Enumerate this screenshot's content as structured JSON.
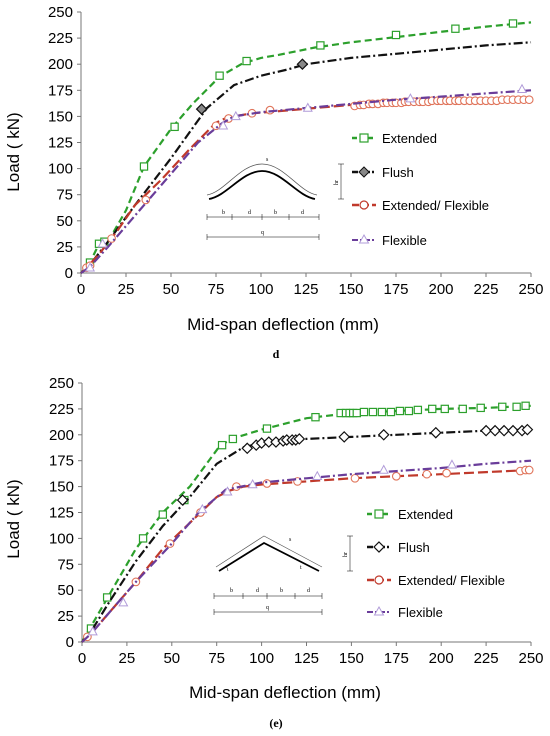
{
  "colors": {
    "extended": "#2ca02c",
    "flush": "#111111",
    "extended_flexible": "#c0392b",
    "flexible": "#6a3d9a",
    "extended_flexible_marker": "#e0745a",
    "flexible_marker": "#b19cd9"
  },
  "chart_data": [
    {
      "type": "line",
      "panel": "(d)",
      "panel_tag": "d",
      "xlabel": "Mid-span deflection (mm)",
      "ylabel": "Load ( kN)",
      "xlim": [
        0,
        250
      ],
      "ylim": [
        0,
        250
      ],
      "xticks": [
        "0",
        "25",
        "50",
        "75",
        "100",
        "125",
        "150",
        "175",
        "200",
        "225",
        "250"
      ],
      "yticks": [
        "0",
        "25",
        "50",
        "75",
        "100",
        "125",
        "150",
        "175",
        "200",
        "225",
        "250"
      ],
      "grid": false,
      "legend_position": "right",
      "inset_labels": {
        "s": "s",
        "hr": "hr",
        "b1": "b",
        "d1": "d",
        "b2": "b",
        "d2": "d",
        "q": "q"
      },
      "series": [
        {
          "name": "Extended",
          "key": "extended",
          "marker": "square",
          "dash": "7,4",
          "x": [
            0,
            2,
            5,
            10,
            15,
            25,
            35,
            50,
            62,
            77,
            90,
            100,
            110,
            130,
            150,
            175,
            200,
            225,
            250
          ],
          "y": [
            0,
            4,
            10,
            28,
            30,
            60,
            102,
            138,
            162,
            188,
            201,
            206,
            209,
            216,
            221,
            226,
            231,
            236,
            240
          ],
          "markers": [
            [
              5,
              10
            ],
            [
              10,
              28
            ],
            [
              13,
              30
            ],
            [
              35,
              102
            ],
            [
              52,
              140
            ],
            [
              77,
              189
            ],
            [
              92,
              203
            ],
            [
              133,
              218
            ],
            [
              175,
              228
            ],
            [
              208,
              234
            ],
            [
              240,
              239
            ]
          ]
        },
        {
          "name": "Flush",
          "key": "flush",
          "marker": "diamond",
          "dash": "9,3,2,3",
          "x": [
            0,
            5,
            15,
            30,
            50,
            70,
            85,
            100,
            115,
            125,
            150,
            175,
            200,
            225,
            250
          ],
          "y": [
            0,
            8,
            30,
            65,
            110,
            158,
            180,
            189,
            195,
            200,
            206,
            210,
            214,
            218,
            221
          ],
          "markers": [
            [
              67,
              157
            ],
            [
              123,
              200
            ]
          ]
        },
        {
          "name": "Extended/ Flexible",
          "key": "extended_flexible",
          "marker": "circle",
          "dash": "10,4",
          "x": [
            0,
            3,
            10,
            20,
            30,
            45,
            60,
            75,
            80,
            85,
            95,
            110,
            130,
            150,
            175,
            200,
            225,
            250
          ],
          "y": [
            0,
            5,
            18,
            40,
            65,
            90,
            118,
            144,
            148,
            150,
            153,
            155,
            158,
            161,
            163,
            164,
            165,
            165
          ],
          "markers": [
            [
              3,
              5
            ],
            [
              5,
              7
            ],
            [
              17,
              33
            ],
            [
              36,
              70
            ],
            [
              75,
              141
            ],
            [
              82,
              148
            ],
            [
              95,
              153
            ],
            [
              105,
              156
            ],
            [
              152,
              160
            ],
            [
              155,
              161
            ],
            [
              157,
              161
            ],
            [
              160,
              162
            ],
            [
              162,
              162
            ],
            [
              165,
              162
            ],
            [
              168,
              163
            ],
            [
              170,
              163
            ],
            [
              173,
              163
            ],
            [
              175,
              163
            ],
            [
              178,
              163
            ],
            [
              180,
              164
            ],
            [
              182,
              164
            ],
            [
              185,
              164
            ],
            [
              188,
              164
            ],
            [
              190,
              164
            ],
            [
              193,
              164
            ],
            [
              195,
              165
            ],
            [
              198,
              165
            ],
            [
              200,
              165
            ],
            [
              203,
              165
            ],
            [
              205,
              165
            ],
            [
              208,
              165
            ],
            [
              210,
              165
            ],
            [
              213,
              165
            ],
            [
              216,
              165
            ],
            [
              219,
              165
            ],
            [
              222,
              165
            ],
            [
              225,
              165
            ],
            [
              228,
              165
            ],
            [
              231,
              165
            ],
            [
              234,
              166
            ],
            [
              237,
              166
            ],
            [
              240,
              166
            ],
            [
              243,
              166
            ],
            [
              246,
              166
            ],
            [
              249,
              166
            ]
          ]
        },
        {
          "name": "Flexible",
          "key": "flexible",
          "marker": "triangle",
          "dash": "9,3,2,3",
          "x": [
            0,
            5,
            15,
            30,
            50,
            65,
            78,
            85,
            100,
            125,
            150,
            175,
            200,
            225,
            250
          ],
          "y": [
            0,
            6,
            25,
            55,
            95,
            125,
            143,
            150,
            154,
            158,
            162,
            166,
            169,
            172,
            175
          ],
          "markers": [
            [
              5,
              5
            ],
            [
              12,
              28
            ],
            [
              79,
              141
            ],
            [
              86,
              150
            ],
            [
              126,
              158
            ],
            [
              183,
              167
            ],
            [
              245,
              176
            ]
          ]
        }
      ]
    },
    {
      "type": "line",
      "panel": "(e)",
      "panel_tag": "(e)",
      "xlabel": "Mid-span deflection (mm)",
      "ylabel": "Load ( kN)",
      "xlim": [
        0,
        250
      ],
      "ylim": [
        0,
        250
      ],
      "xticks": [
        "0",
        "25",
        "50",
        "75",
        "100",
        "125",
        "150",
        "175",
        "200",
        "225",
        "250"
      ],
      "yticks": [
        "0",
        "25",
        "50",
        "75",
        "100",
        "125",
        "150",
        "175",
        "200",
        "225",
        "250"
      ],
      "grid": false,
      "legend_position": "right",
      "inset_labels": {
        "s": "s",
        "hr": "hr",
        "t": "t",
        "b1": "b",
        "d1": "d",
        "b2": "b",
        "d2": "d",
        "q": "q"
      },
      "series": [
        {
          "name": "Extended",
          "key": "extended",
          "marker": "square",
          "dash": "7,4",
          "x": [
            0,
            5,
            15,
            30,
            45,
            60,
            77,
            85,
            100,
            125,
            150,
            175,
            200,
            225,
            250
          ],
          "y": [
            0,
            15,
            45,
            90,
            125,
            150,
            190,
            197,
            205,
            216,
            221,
            223,
            225,
            226,
            228
          ],
          "markers": [
            [
              5,
              13
            ],
            [
              14,
              43
            ],
            [
              34,
              100
            ],
            [
              45,
              123
            ],
            [
              57,
              137
            ],
            [
              78,
              190
            ],
            [
              84,
              196
            ],
            [
              103,
              206
            ],
            [
              130,
              217
            ],
            [
              144,
              221
            ],
            [
              147,
              221
            ],
            [
              149,
              221
            ],
            [
              151,
              221
            ],
            [
              153,
              221
            ],
            [
              157,
              222
            ],
            [
              162,
              222
            ],
            [
              167,
              222
            ],
            [
              172,
              222
            ],
            [
              177,
              223
            ],
            [
              182,
              223
            ],
            [
              187,
              224
            ],
            [
              195,
              225
            ],
            [
              202,
              225
            ],
            [
              212,
              225
            ],
            [
              222,
              226
            ],
            [
              234,
              227
            ],
            [
              242,
              227
            ],
            [
              247,
              228
            ]
          ]
        },
        {
          "name": "Flush",
          "key": "flush",
          "marker": "diamond",
          "dash": "9,3,2,3",
          "x": [
            0,
            5,
            15,
            30,
            45,
            60,
            75,
            90,
            100,
            115,
            125,
            150,
            175,
            200,
            225,
            250
          ],
          "y": [
            0,
            10,
            38,
            78,
            112,
            140,
            172,
            188,
            192,
            195,
            196,
            198,
            200,
            202,
            204,
            205
          ],
          "markers": [
            [
              56,
              137
            ],
            [
              92,
              187
            ],
            [
              97,
              190
            ],
            [
              100,
              192
            ],
            [
              104,
              193
            ],
            [
              108,
              193
            ],
            [
              112,
              194
            ],
            [
              114,
              195
            ],
            [
              117,
              195
            ],
            [
              119,
              195
            ],
            [
              121,
              196
            ],
            [
              146,
              198
            ],
            [
              168,
              200
            ],
            [
              197,
              202
            ],
            [
              225,
              204
            ],
            [
              230,
              204
            ],
            [
              235,
              204
            ],
            [
              240,
              204
            ],
            [
              245,
              204
            ],
            [
              248,
              205
            ]
          ]
        },
        {
          "name": "Extended/ Flexible",
          "key": "extended_flexible",
          "marker": "circle",
          "dash": "10,4",
          "x": [
            0,
            5,
            15,
            30,
            45,
            60,
            75,
            82,
            90,
            100,
            125,
            150,
            175,
            200,
            225,
            250
          ],
          "y": [
            0,
            8,
            28,
            58,
            90,
            115,
            140,
            146,
            150,
            152,
            155,
            158,
            160,
            162,
            164,
            166
          ],
          "markers": [
            [
              3,
              5
            ],
            [
              30,
              58
            ],
            [
              49,
              95
            ],
            [
              66,
              125
            ],
            [
              86,
              150
            ],
            [
              103,
              153
            ],
            [
              120,
              155
            ],
            [
              152,
              158
            ],
            [
              175,
              160
            ],
            [
              192,
              162
            ],
            [
              203,
              163
            ],
            [
              244,
              165
            ],
            [
              247,
              166
            ],
            [
              249,
              166
            ]
          ]
        },
        {
          "name": "Flexible",
          "key": "flexible",
          "marker": "triangle",
          "dash": "9,3,2,3",
          "x": [
            0,
            5,
            15,
            30,
            50,
            65,
            80,
            100,
            125,
            150,
            175,
            200,
            225,
            250
          ],
          "y": [
            0,
            8,
            28,
            58,
            95,
            125,
            147,
            154,
            158,
            162,
            165,
            168,
            172,
            175
          ],
          "markers": [
            [
              6,
              10
            ],
            [
              23,
              38
            ],
            [
              67,
              128
            ],
            [
              81,
              145
            ],
            [
              95,
              152
            ],
            [
              131,
              160
            ],
            [
              168,
              166
            ],
            [
              206,
              171
            ]
          ]
        }
      ]
    }
  ]
}
